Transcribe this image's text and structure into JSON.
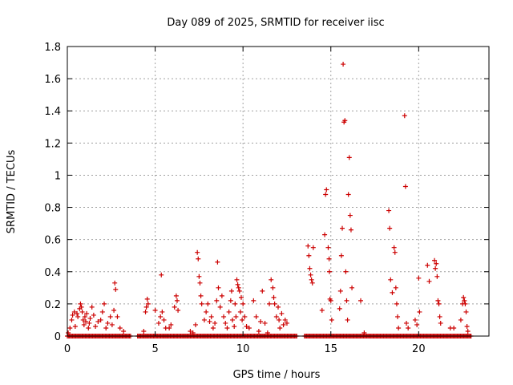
{
  "chart_data": {
    "type": "scatter",
    "title": "Day 089 of 2025, SRMTID for receiver iisc",
    "xlabel": "GPS time / hours",
    "ylabel": "SRMTID / TECUs",
    "xlim": [
      0,
      24
    ],
    "ylim": [
      0,
      1.8
    ],
    "xticks": [
      0,
      5,
      10,
      15,
      20
    ],
    "xtick_labels": [
      "0",
      "5",
      "10",
      "15",
      "20"
    ],
    "yticks": [
      0,
      0.2,
      0.4,
      0.6,
      0.8,
      1,
      1.2,
      1.4,
      1.6,
      1.8
    ],
    "ytick_labels": [
      "0",
      "0.2",
      "0.4",
      "0.6",
      "0.8",
      "1",
      "1.2",
      "1.4",
      "1.6",
      "1.8"
    ],
    "grid": true,
    "marker": "plus",
    "marker_color": "#cc0000",
    "series": [
      {
        "name": "SRMTID",
        "points": [
          [
            0.05,
            0.02
          ],
          [
            0.15,
            0.05
          ],
          [
            0.25,
            0.1
          ],
          [
            0.3,
            0.13
          ],
          [
            0.4,
            0.15
          ],
          [
            0.45,
            0.06
          ],
          [
            0.55,
            0.14
          ],
          [
            0.6,
            0.12
          ],
          [
            0.7,
            0.17
          ],
          [
            0.75,
            0.2
          ],
          [
            0.8,
            0.18
          ],
          [
            0.85,
            0.15
          ],
          [
            0.9,
            0.1
          ],
          [
            0.95,
            0.07
          ],
          [
            1.0,
            0.12
          ],
          [
            1.05,
            0.09
          ],
          [
            1.1,
            0.14
          ],
          [
            1.2,
            0.05
          ],
          [
            1.25,
            0.08
          ],
          [
            1.3,
            0.11
          ],
          [
            1.4,
            0.18
          ],
          [
            1.5,
            0.13
          ],
          [
            1.6,
            0.06
          ],
          [
            1.75,
            0.09
          ],
          [
            1.9,
            0.1
          ],
          [
            2.0,
            0.15
          ],
          [
            2.1,
            0.2
          ],
          [
            2.2,
            0.05
          ],
          [
            2.3,
            0.08
          ],
          [
            2.45,
            0.12
          ],
          [
            2.55,
            0.07
          ],
          [
            2.65,
            0.16
          ],
          [
            2.7,
            0.33
          ],
          [
            2.75,
            0.29
          ],
          [
            2.85,
            0.12
          ],
          [
            3.0,
            0.05
          ],
          [
            3.2,
            0.03
          ],
          [
            4.35,
            0.03
          ],
          [
            4.45,
            0.15
          ],
          [
            4.5,
            0.18
          ],
          [
            4.55,
            0.23
          ],
          [
            4.6,
            0.2
          ],
          [
            5.0,
            0.16
          ],
          [
            5.2,
            0.08
          ],
          [
            5.3,
            0.12
          ],
          [
            5.35,
            0.38
          ],
          [
            5.4,
            0.15
          ],
          [
            5.5,
            0.1
          ],
          [
            5.6,
            0.05
          ],
          [
            5.8,
            0.05
          ],
          [
            5.9,
            0.07
          ],
          [
            6.1,
            0.18
          ],
          [
            6.2,
            0.25
          ],
          [
            6.25,
            0.22
          ],
          [
            6.3,
            0.16
          ],
          [
            7.0,
            0.03
          ],
          [
            7.15,
            0.02
          ],
          [
            7.3,
            0.07
          ],
          [
            7.4,
            0.52
          ],
          [
            7.45,
            0.48
          ],
          [
            7.5,
            0.37
          ],
          [
            7.55,
            0.33
          ],
          [
            7.6,
            0.25
          ],
          [
            7.65,
            0.2
          ],
          [
            7.8,
            0.1
          ],
          [
            7.9,
            0.15
          ],
          [
            8.0,
            0.2
          ],
          [
            8.1,
            0.09
          ],
          [
            8.2,
            0.12
          ],
          [
            8.3,
            0.05
          ],
          [
            8.4,
            0.08
          ],
          [
            8.5,
            0.22
          ],
          [
            8.55,
            0.46
          ],
          [
            8.6,
            0.3
          ],
          [
            8.7,
            0.18
          ],
          [
            8.8,
            0.25
          ],
          [
            8.9,
            0.12
          ],
          [
            9.0,
            0.08
          ],
          [
            9.1,
            0.05
          ],
          [
            9.2,
            0.15
          ],
          [
            9.3,
            0.22
          ],
          [
            9.35,
            0.28
          ],
          [
            9.4,
            0.1
          ],
          [
            9.5,
            0.06
          ],
          [
            9.55,
            0.2
          ],
          [
            9.6,
            0.12
          ],
          [
            9.65,
            0.35
          ],
          [
            9.7,
            0.32
          ],
          [
            9.75,
            0.3
          ],
          [
            9.8,
            0.28
          ],
          [
            9.85,
            0.15
          ],
          [
            9.9,
            0.24
          ],
          [
            9.95,
            0.1
          ],
          [
            10.0,
            0.2
          ],
          [
            10.1,
            0.12
          ],
          [
            10.2,
            0.06
          ],
          [
            10.35,
            0.05
          ],
          [
            10.6,
            0.22
          ],
          [
            10.75,
            0.12
          ],
          [
            10.9,
            0.03
          ],
          [
            11.0,
            0.09
          ],
          [
            11.1,
            0.28
          ],
          [
            11.25,
            0.08
          ],
          [
            11.4,
            0.02
          ],
          [
            11.5,
            0.2
          ],
          [
            11.6,
            0.35
          ],
          [
            11.7,
            0.3
          ],
          [
            11.75,
            0.24
          ],
          [
            11.8,
            0.2
          ],
          [
            11.9,
            0.12
          ],
          [
            12.0,
            0.18
          ],
          [
            12.05,
            0.1
          ],
          [
            12.1,
            0.05
          ],
          [
            12.2,
            0.14
          ],
          [
            12.3,
            0.07
          ],
          [
            12.4,
            0.1
          ],
          [
            12.5,
            0.08
          ],
          [
            13.7,
            0.56
          ],
          [
            13.75,
            0.5
          ],
          [
            13.8,
            0.42
          ],
          [
            13.85,
            0.38
          ],
          [
            13.9,
            0.35
          ],
          [
            13.95,
            0.33
          ],
          [
            14.0,
            0.55
          ],
          [
            14.5,
            0.16
          ],
          [
            14.65,
            0.63
          ],
          [
            14.7,
            0.88
          ],
          [
            14.75,
            0.91
          ],
          [
            14.85,
            0.55
          ],
          [
            14.9,
            0.48
          ],
          [
            14.92,
            0.4
          ],
          [
            14.95,
            0.23
          ],
          [
            15.0,
            0.22
          ],
          [
            15.05,
            0.1
          ],
          [
            15.5,
            0.17
          ],
          [
            15.55,
            0.28
          ],
          [
            15.6,
            0.5
          ],
          [
            15.65,
            0.67
          ],
          [
            15.7,
            1.69
          ],
          [
            15.75,
            1.33
          ],
          [
            15.8,
            1.34
          ],
          [
            15.85,
            0.4
          ],
          [
            15.9,
            0.22
          ],
          [
            15.95,
            0.1
          ],
          [
            16.0,
            0.88
          ],
          [
            16.05,
            1.11
          ],
          [
            16.1,
            0.75
          ],
          [
            16.15,
            0.66
          ],
          [
            16.2,
            0.3
          ],
          [
            16.7,
            0.22
          ],
          [
            16.9,
            0.02
          ],
          [
            18.3,
            0.78
          ],
          [
            18.35,
            0.67
          ],
          [
            18.4,
            0.35
          ],
          [
            18.5,
            0.27
          ],
          [
            18.6,
            0.55
          ],
          [
            18.65,
            0.52
          ],
          [
            18.7,
            0.3
          ],
          [
            18.75,
            0.2
          ],
          [
            18.8,
            0.12
          ],
          [
            18.85,
            0.05
          ],
          [
            19.2,
            1.37
          ],
          [
            19.25,
            0.93
          ],
          [
            19.3,
            0.08
          ],
          [
            19.4,
            0.05
          ],
          [
            19.8,
            0.1
          ],
          [
            19.9,
            0.07
          ],
          [
            20.0,
            0.36
          ],
          [
            20.05,
            0.15
          ],
          [
            20.5,
            0.44
          ],
          [
            20.6,
            0.34
          ],
          [
            20.9,
            0.47
          ],
          [
            20.95,
            0.42
          ],
          [
            21.0,
            0.45
          ],
          [
            21.05,
            0.37
          ],
          [
            21.1,
            0.22
          ],
          [
            21.15,
            0.2
          ],
          [
            21.2,
            0.12
          ],
          [
            21.25,
            0.08
          ],
          [
            21.8,
            0.05
          ],
          [
            22.0,
            0.05
          ],
          [
            22.4,
            0.1
          ],
          [
            22.5,
            0.2
          ],
          [
            22.55,
            0.24
          ],
          [
            22.6,
            0.22
          ],
          [
            22.65,
            0.2
          ],
          [
            22.7,
            0.15
          ],
          [
            22.75,
            0.06
          ],
          [
            22.8,
            0.03
          ]
        ],
        "baseline_zero_segments": [
          [
            0.0,
            3.6
          ],
          [
            4.0,
            13.1
          ],
          [
            13.5,
            23.0
          ]
        ]
      }
    ]
  }
}
